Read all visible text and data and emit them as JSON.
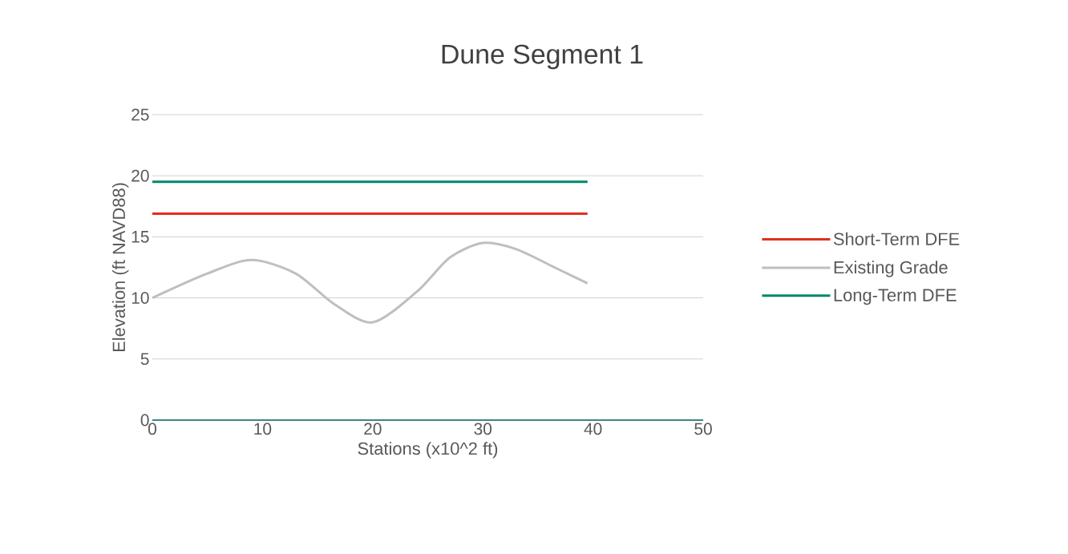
{
  "chart_data": {
    "type": "line",
    "title": "Dune Segment 1",
    "xlabel": "Stations (x10^2 ft)",
    "ylabel": "Elevation  (ft NAVD88)",
    "xlim": [
      0,
      50
    ],
    "xticks": [
      0,
      10,
      20,
      30,
      40,
      50
    ],
    "ylim": [
      0,
      25
    ],
    "yticks": [
      0,
      5,
      10,
      15,
      20,
      25
    ],
    "grid": "y",
    "legend": "right",
    "line_style": "solid",
    "series": [
      {
        "name": "Short-Term DFE",
        "color": "#e0301e",
        "x": [
          0,
          39.5
        ],
        "values": [
          16.9,
          16.9
        ]
      },
      {
        "name": "Existing Grade",
        "color": "#bfbfbf",
        "x": [
          0,
          5,
          9,
          13,
          16.5,
          20,
          24,
          27,
          30,
          33,
          36.5,
          39.5
        ],
        "values": [
          10,
          12,
          13.1,
          12,
          9.5,
          8,
          10.5,
          13.3,
          14.5,
          14,
          12.5,
          11.2
        ]
      },
      {
        "name": "Long-Term DFE",
        "color": "#00876a",
        "x": [
          0,
          39.5
        ],
        "values": [
          19.5,
          19.5
        ]
      }
    ]
  }
}
